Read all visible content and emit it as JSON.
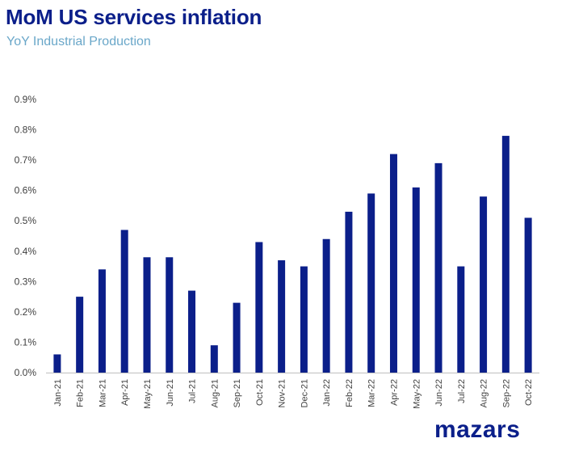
{
  "header": {
    "title": "MoM US services inflation",
    "subtitle": "YoY Industrial Production"
  },
  "logo": {
    "text": "mazars"
  },
  "colors": {
    "bar": "#0b1f8a",
    "title": "#0b1f8a",
    "subtitle": "#6aa7c9",
    "axis": "#bfbfbf",
    "tick_text": "#404040"
  },
  "chart_data": {
    "type": "bar",
    "title": "MoM US services inflation",
    "subtitle": "YoY Industrial Production",
    "xlabel": "",
    "ylabel": "",
    "categories": [
      "Jan-21",
      "Feb-21",
      "Mar-21",
      "Apr-21",
      "May-21",
      "Jun-21",
      "Jul-21",
      "Aug-21",
      "Sep-21",
      "Oct-21",
      "Nov-21",
      "Dec-21",
      "Jan-22",
      "Feb-22",
      "Mar-22",
      "Apr-22",
      "May-22",
      "Jun-22",
      "Jul-22",
      "Aug-22",
      "Sep-22",
      "Oct-22"
    ],
    "values": [
      0.06,
      0.25,
      0.34,
      0.47,
      0.38,
      0.38,
      0.27,
      0.09,
      0.23,
      0.43,
      0.37,
      0.35,
      0.44,
      0.53,
      0.59,
      0.72,
      0.61,
      0.69,
      0.35,
      0.58,
      0.78,
      0.51
    ],
    "ylim": [
      0,
      0.9
    ],
    "yticks": [
      0,
      0.1,
      0.2,
      0.3,
      0.4,
      0.5,
      0.6,
      0.7,
      0.8,
      0.9
    ],
    "ytick_labels": [
      "0.0%",
      "0.1%",
      "0.2%",
      "0.3%",
      "0.4%",
      "0.5%",
      "0.6%",
      "0.7%",
      "0.8%",
      "0.9%"
    ],
    "grid": false,
    "legend": "none"
  }
}
